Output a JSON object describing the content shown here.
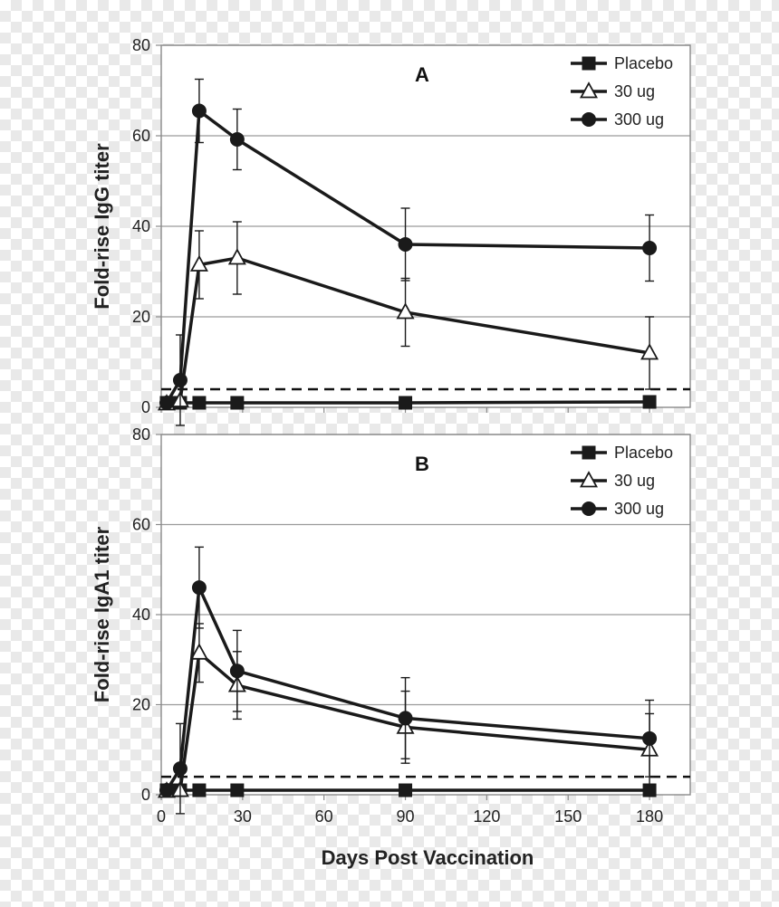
{
  "chart_data": [
    {
      "type": "line",
      "panel_label": "A",
      "ylabel": "Fold-rise IgG titer",
      "xlabel": "",
      "ylim": [
        0,
        80
      ],
      "yticks": [
        0,
        20,
        40,
        60,
        80
      ],
      "xlim": [
        0,
        195
      ],
      "xticks": [
        0,
        30,
        60,
        90,
        120,
        150,
        180
      ],
      "show_x_tick_labels": false,
      "grid": true,
      "threshold_line": 4,
      "legend_position": "top-right",
      "series": [
        {
          "name": "Placebo",
          "marker": "square",
          "x": [
            2,
            7,
            14,
            28,
            90,
            180
          ],
          "y": [
            1,
            1,
            1,
            1,
            1,
            1.2
          ],
          "err": [
            0,
            0,
            0,
            0,
            0,
            0
          ]
        },
        {
          "name": "30 ug",
          "marker": "triangle-open",
          "x": [
            2,
            7,
            14,
            28,
            90,
            180
          ],
          "y": [
            0.8,
            1.5,
            31.5,
            33,
            21,
            12
          ],
          "err": [
            0,
            0,
            7.5,
            8,
            7.5,
            8
          ]
        },
        {
          "name": "300 ug",
          "marker": "circle",
          "x": [
            2,
            7,
            14,
            28,
            90,
            180
          ],
          "y": [
            1,
            6,
            65.5,
            59.2,
            36,
            35.2
          ],
          "err": [
            0,
            10,
            7,
            6.7,
            8,
            7.3
          ]
        }
      ]
    },
    {
      "type": "line",
      "panel_label": "B",
      "ylabel": "Fold-rise IgA1 titer",
      "xlabel": "Days Post Vaccination",
      "ylim": [
        0,
        80
      ],
      "yticks": [
        0,
        20,
        40,
        60,
        80
      ],
      "xlim": [
        0,
        195
      ],
      "xticks": [
        0,
        30,
        60,
        90,
        120,
        150,
        180
      ],
      "show_x_tick_labels": true,
      "grid": true,
      "threshold_line": 4,
      "legend_position": "top-right",
      "series": [
        {
          "name": "Placebo",
          "marker": "square",
          "x": [
            2,
            7,
            14,
            28,
            90,
            180
          ],
          "y": [
            1,
            1,
            1,
            1,
            1,
            1
          ],
          "err": [
            0,
            0,
            0,
            0,
            0,
            0
          ]
        },
        {
          "name": "30 ug",
          "marker": "triangle-open",
          "x": [
            2,
            7,
            14,
            28,
            90,
            180
          ],
          "y": [
            0.8,
            1,
            31.5,
            24.3,
            15,
            10
          ],
          "err": [
            0,
            0,
            6.5,
            7.5,
            8,
            8
          ]
        },
        {
          "name": "300 ug",
          "marker": "circle",
          "x": [
            2,
            7,
            14,
            28,
            90,
            180
          ],
          "y": [
            1,
            5.8,
            46,
            27.5,
            17,
            12.5
          ],
          "err": [
            0,
            10,
            9,
            9,
            9,
            8.5
          ]
        }
      ]
    }
  ]
}
